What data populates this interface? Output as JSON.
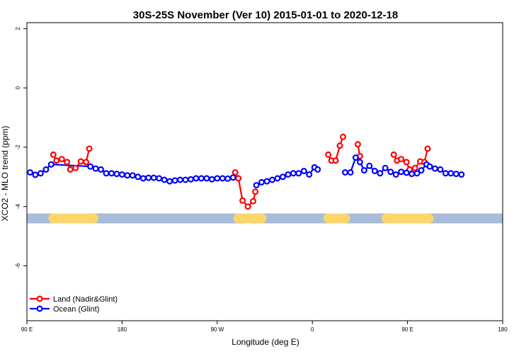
{
  "chart_data": {
    "type": "line",
    "title": "30S-25S November (Ver 10)   2015-01-01 to 2020-12-18",
    "xlabel": "Longitude (deg E)",
    "ylabel": "XCO2 - MLO trend (ppm)",
    "xlim": [
      90,
      540
    ],
    "ylim": [
      -7.85,
      2.2
    ],
    "x_ticks": [
      {
        "value": 90,
        "label": "90 E"
      },
      {
        "value": 180,
        "label": "180"
      },
      {
        "value": 270,
        "label": "90 W"
      },
      {
        "value": 360,
        "label": "0"
      },
      {
        "value": 450,
        "label": "90 E"
      },
      {
        "value": 540,
        "label": "180"
      }
    ],
    "y_ticks": [
      {
        "value": 2,
        "label": "2"
      },
      {
        "value": 0,
        "label": "0"
      },
      {
        "value": -2,
        "label": "-2"
      },
      {
        "value": -4,
        "label": "-4"
      },
      {
        "value": -6,
        "label": "-6"
      }
    ],
    "grid": false,
    "legend_position": "bottom-left",
    "colors": {
      "land": "#ff0000",
      "ocean": "#0000ff",
      "ocean_bar": "#a7bcd9",
      "land_bar": "#fcd66c"
    },
    "land_mask": {
      "y": -4.4,
      "ocean_segments": [
        [
          90,
          540
        ]
      ],
      "land_segments": [
        [
          115,
          153
        ],
        [
          290,
          312
        ],
        [
          375,
          391
        ],
        [
          430,
          470
        ]
      ]
    },
    "series": [
      {
        "name": "Land (Nadir&Glint)",
        "color": "#ff0000",
        "segments": [
          [
            [
              115,
              -2.25
            ],
            [
              118,
              -2.45
            ],
            [
              123,
              -2.4
            ],
            [
              128,
              -2.5
            ],
            [
              131,
              -2.75
            ],
            [
              136,
              -2.7
            ],
            [
              141,
              -2.48
            ],
            [
              146,
              -2.5
            ],
            [
              149,
              -2.05
            ]
          ],
          [
            [
              287,
              -2.85
            ],
            [
              290,
              -3.05
            ],
            [
              294,
              -3.8
            ],
            [
              299,
              -4.0
            ],
            [
              304,
              -3.82
            ],
            [
              306,
              -3.5
            ]
          ],
          [
            [
              375,
              -2.25
            ],
            [
              378,
              -2.45
            ],
            [
              382,
              -2.45
            ],
            [
              386,
              -1.95
            ],
            [
              389,
              -1.65
            ]
          ],
          [
            [
              403,
              -1.9
            ],
            [
              405,
              -2.3
            ]
          ],
          [
            [
              437,
              -2.25
            ],
            [
              440,
              -2.45
            ],
            [
              444,
              -2.4
            ],
            [
              449,
              -2.5
            ],
            [
              452,
              -2.75
            ],
            [
              457,
              -2.7
            ],
            [
              462,
              -2.48
            ],
            [
              466,
              -2.5
            ],
            [
              469,
              -2.05
            ]
          ]
        ]
      },
      {
        "name": "Ocean (Glint)",
        "color": "#0000ff",
        "segments": [
          [
            [
              93,
              -2.85
            ],
            [
              98,
              -2.93
            ],
            [
              103,
              -2.88
            ],
            [
              108,
              -2.75
            ],
            [
              113,
              -2.58
            ],
            [
              150,
              -2.65
            ],
            [
              155,
              -2.72
            ],
            [
              160,
              -2.75
            ],
            [
              165,
              -2.88
            ],
            [
              170,
              -2.88
            ],
            [
              175,
              -2.9
            ],
            [
              180,
              -2.92
            ],
            [
              185,
              -2.95
            ],
            [
              190,
              -2.95
            ],
            [
              195,
              -3.0
            ],
            [
              200,
              -3.05
            ],
            [
              205,
              -3.03
            ],
            [
              210,
              -3.03
            ],
            [
              215,
              -3.05
            ],
            [
              220,
              -3.1
            ],
            [
              225,
              -3.15
            ],
            [
              230,
              -3.12
            ],
            [
              235,
              -3.1
            ],
            [
              240,
              -3.1
            ],
            [
              245,
              -3.08
            ],
            [
              250,
              -3.05
            ],
            [
              255,
              -3.05
            ],
            [
              260,
              -3.05
            ],
            [
              265,
              -3.08
            ],
            [
              270,
              -3.05
            ],
            [
              275,
              -3.05
            ],
            [
              280,
              -3.06
            ],
            [
              285,
              -3.02
            ]
          ],
          [
            [
              307,
              -3.28
            ],
            [
              312,
              -3.18
            ],
            [
              317,
              -3.15
            ],
            [
              322,
              -3.1
            ],
            [
              327,
              -3.05
            ],
            [
              332,
              -3.0
            ],
            [
              337,
              -2.92
            ],
            [
              342,
              -2.88
            ],
            [
              347,
              -2.88
            ],
            [
              352,
              -2.8
            ],
            [
              357,
              -2.92
            ],
            [
              362,
              -2.68
            ],
            [
              365,
              -2.75
            ]
          ],
          [
            [
              391,
              -2.85
            ],
            [
              396,
              -2.85
            ],
            [
              401,
              -2.35
            ],
            [
              405,
              -2.5
            ],
            [
              409,
              -2.78
            ],
            [
              414,
              -2.63
            ],
            [
              419,
              -2.8
            ],
            [
              424,
              -2.88
            ],
            [
              429,
              -2.7
            ],
            [
              434,
              -2.83
            ],
            [
              439,
              -2.92
            ],
            [
              444,
              -2.83
            ],
            [
              449,
              -2.86
            ],
            [
              454,
              -2.9
            ],
            [
              459,
              -2.88
            ],
            [
              463,
              -2.78
            ],
            [
              468,
              -2.58
            ],
            [
              471,
              -2.65
            ],
            [
              476,
              -2.72
            ],
            [
              481,
              -2.75
            ],
            [
              486,
              -2.88
            ],
            [
              491,
              -2.88
            ],
            [
              496,
              -2.9
            ],
            [
              501,
              -2.92
            ]
          ]
        ]
      }
    ],
    "legend": [
      {
        "label": "Land (Nadir&Glint)",
        "color": "#ff0000"
      },
      {
        "label": "Ocean (Glint)",
        "color": "#0000ff"
      }
    ]
  }
}
